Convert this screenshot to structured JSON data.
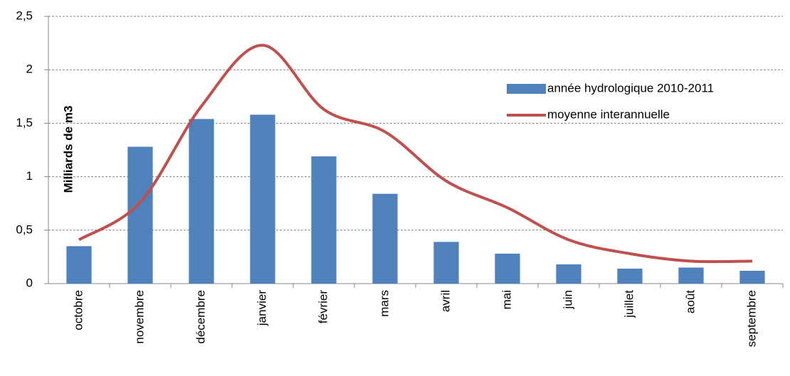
{
  "chart_data": {
    "type": "bar",
    "y_label": "Milliards de m3",
    "categories": [
      "octobre",
      "novembre",
      "décembre",
      "janvier",
      "février",
      "mars",
      "avril",
      "mai",
      "juin",
      "juillet",
      "août",
      "septembre"
    ],
    "series": [
      {
        "name": "année hydrologique 2010-2011",
        "type": "bar",
        "color": "#4f81bd",
        "values": [
          0.35,
          1.28,
          1.54,
          1.58,
          1.19,
          0.84,
          0.39,
          0.28,
          0.18,
          0.14,
          0.15,
          0.12
        ]
      },
      {
        "name": "moyenne interannuelle",
        "type": "line",
        "color": "#c0504d",
        "values": [
          0.41,
          0.76,
          1.66,
          2.23,
          1.63,
          1.42,
          0.96,
          0.71,
          0.41,
          0.28,
          0.21,
          0.21
        ]
      }
    ],
    "ylim": [
      0,
      2.5
    ],
    "yticks": [
      0,
      {
        "value": 0.5,
        "label": "0,5"
      },
      1,
      {
        "value": 1.5,
        "label": "1,5"
      },
      2,
      {
        "value": 2.5,
        "label": "2,5"
      }
    ],
    "grid": true,
    "legend": "right"
  }
}
